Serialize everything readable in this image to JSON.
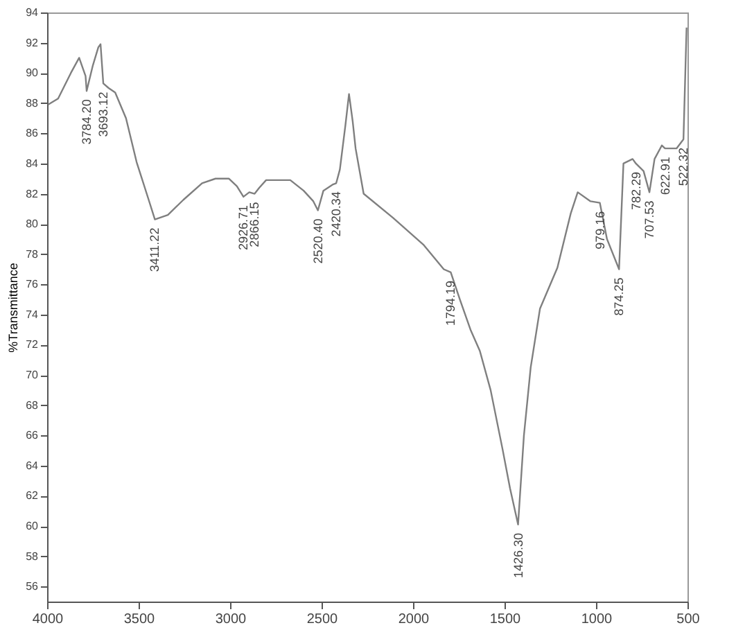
{
  "chart_data": {
    "type": "line",
    "ylabel": "%Transmittance",
    "xlim": [
      4000,
      500
    ],
    "xticks": [
      4000,
      3500,
      3000,
      2500,
      2000,
      1500,
      1000,
      500
    ],
    "ylim": [
      55,
      94
    ],
    "yticks": [
      56,
      58,
      60,
      62,
      64,
      66,
      68,
      70,
      72,
      74,
      76,
      78,
      80,
      82,
      84,
      86,
      88,
      90,
      92,
      94
    ],
    "grid": false,
    "marker": "none",
    "line_style": "solid",
    "series": [
      {
        "color": "#7f7f7f",
        "x": [
          3995,
          3940,
          3870,
          3825,
          3790,
          3784,
          3750,
          3720,
          3708,
          3693,
          3664,
          3628,
          3569,
          3511,
          3445,
          3411,
          3340,
          3255,
          3153,
          3080,
          3007,
          2963,
          2927,
          2895,
          2866,
          2840,
          2803,
          2671,
          2598,
          2545,
          2520,
          2490,
          2440,
          2420,
          2400,
          2370,
          2350,
          2330,
          2314,
          2270,
          2109,
          1941,
          1832,
          1794,
          1744,
          1686,
          1635,
          1576,
          1511,
          1470,
          1426,
          1394,
          1357,
          1306,
          1211,
          1138,
          1100,
          1030,
          979,
          940,
          874,
          850,
          800,
          782,
          740,
          708,
          680,
          640,
          623,
          560,
          522,
          505
        ],
        "values": [
          87.9,
          88.3,
          90.0,
          91.0,
          89.8,
          88.8,
          90.5,
          91.7,
          91.9,
          89.3,
          89.0,
          88.7,
          87.0,
          84.1,
          81.6,
          80.3,
          80.6,
          81.6,
          82.7,
          83.0,
          83.0,
          82.5,
          81.8,
          82.1,
          82.0,
          82.4,
          82.9,
          82.9,
          82.2,
          81.5,
          80.9,
          82.2,
          82.6,
          82.7,
          83.6,
          86.5,
          88.6,
          86.8,
          85.0,
          82.0,
          80.4,
          78.6,
          77.0,
          76.8,
          75.0,
          73.0,
          71.6,
          69.0,
          65.1,
          62.5,
          60.1,
          66.0,
          70.5,
          74.4,
          77.1,
          80.7,
          82.1,
          81.5,
          81.4,
          79.0,
          77.0,
          84.0,
          84.3,
          84.0,
          83.5,
          82.1,
          84.3,
          85.2,
          85.0,
          85.0,
          85.6,
          93.0
        ]
      }
    ],
    "annotations": [
      {
        "text": "3784.20",
        "x": 3784,
        "y": 88.8
      },
      {
        "text": "3693.12",
        "x": 3693,
        "y": 89.3
      },
      {
        "text": "3411.22",
        "x": 3411,
        "y": 80.3
      },
      {
        "text": "2926.71",
        "x": 2927,
        "y": 81.8
      },
      {
        "text": "2866.15",
        "x": 2866,
        "y": 82.0
      },
      {
        "text": "2520.40",
        "x": 2520,
        "y": 80.9
      },
      {
        "text": "2420.34",
        "x": 2420,
        "y": 82.7
      },
      {
        "text": "1794.19",
        "x": 1794,
        "y": 76.8
      },
      {
        "text": "1426.30",
        "x": 1426,
        "y": 60.1
      },
      {
        "text": "979.16",
        "x": 979,
        "y": 81.4
      },
      {
        "text": "874.25",
        "x": 874,
        "y": 77.0
      },
      {
        "text": "782.29",
        "x": 782,
        "y": 84.0
      },
      {
        "text": "707.53",
        "x": 708,
        "y": 82.1
      },
      {
        "text": "622.91",
        "x": 623,
        "y": 85.0
      },
      {
        "text": "522.32",
        "x": 522,
        "y": 85.6
      }
    ]
  }
}
